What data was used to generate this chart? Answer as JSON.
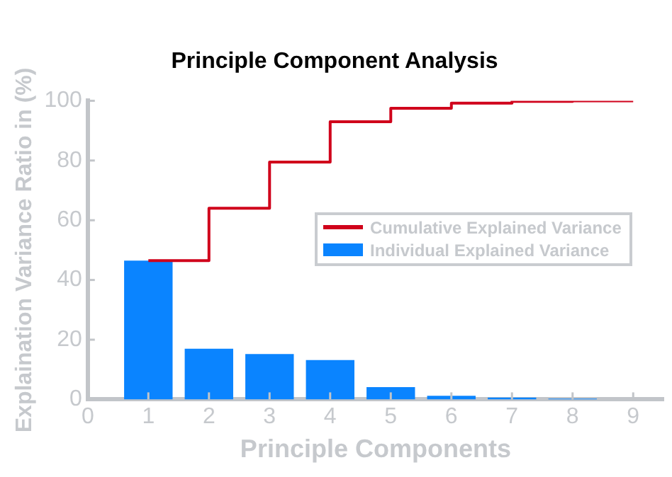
{
  "chart_data": {
    "type": "bar",
    "title": "Principle Component Analysis",
    "xlabel": "Principle Components",
    "ylabel": "Explaination Variance Ratio in (%)",
    "x": [
      1,
      2,
      3,
      4,
      5,
      6,
      7,
      8,
      9
    ],
    "series": [
      {
        "name": "Cumulative Explained Variance",
        "type": "step",
        "color": "#d0021b",
        "values": [
          46.5,
          64,
          79.5,
          93,
          97.5,
          99.2,
          99.8,
          100,
          100
        ]
      },
      {
        "name": "Individual Explained Variance",
        "color": "#0a84ff",
        "values": [
          46.5,
          17,
          15.2,
          13.2,
          4.1,
          1.2,
          0.6,
          0.3,
          null
        ]
      }
    ],
    "xlim": [
      0,
      9.5
    ],
    "xticks": [
      0,
      1,
      2,
      3,
      4,
      5,
      6,
      7,
      8,
      9
    ],
    "ylim": [
      0,
      100
    ],
    "yticks": [
      0,
      20,
      40,
      60,
      80,
      100
    ],
    "grid": false,
    "legend": "center right"
  }
}
